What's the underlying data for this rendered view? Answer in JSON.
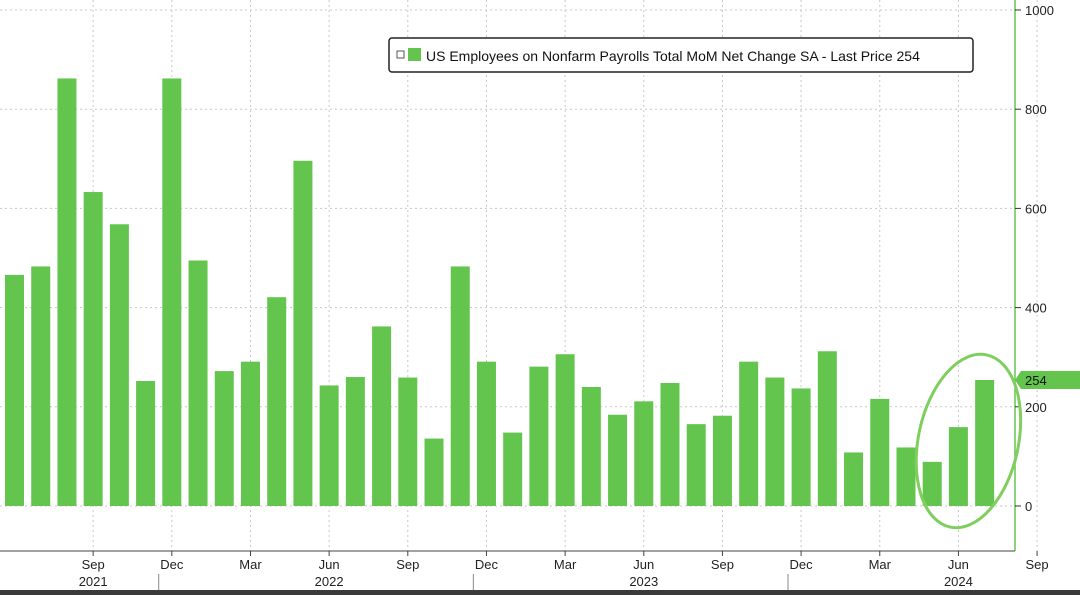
{
  "chart_data": {
    "type": "bar",
    "title": "",
    "xlabel": "",
    "ylabel": "",
    "legend": {
      "label": "US Employees on Nonfarm Payrolls Total MoM Net Change SA - Last Price 254",
      "placement": "top-right"
    },
    "series": [
      {
        "name": "US Employees on Nonfarm Payrolls Total MoM Net Change SA",
        "color": "#63c54d",
        "values": [
          466,
          483,
          862,
          633,
          568,
          252,
          862,
          495,
          272,
          291,
          421,
          696,
          243,
          260,
          362,
          259,
          136,
          483,
          291,
          148,
          281,
          306,
          240,
          184,
          211,
          248,
          165,
          182,
          291,
          259,
          237,
          312,
          108,
          216,
          118,
          89,
          159,
          254
        ]
      }
    ],
    "categories": [
      "2021-06",
      "2021-07",
      "2021-08",
      "2021-09",
      "2021-10",
      "2021-11",
      "2021-12",
      "2022-01",
      "2022-02",
      "2022-03",
      "2022-04",
      "2022-05",
      "2022-06",
      "2022-07",
      "2022-08",
      "2022-09",
      "2022-10",
      "2022-11",
      "2022-12",
      "2023-01",
      "2023-02",
      "2023-03",
      "2023-04",
      "2023-05",
      "2023-06",
      "2023-07",
      "2023-08",
      "2023-09",
      "2023-10",
      "2023-11",
      "2023-12",
      "2024-01",
      "2024-02",
      "2024-03",
      "2024-04",
      "2024-05",
      "2024-06",
      "2024-07"
    ],
    "ylim": [
      -90,
      1000
    ],
    "y_ticks": [
      "1000",
      "800",
      "600",
      "400",
      "200",
      "0"
    ],
    "x_month_ticks": [
      {
        "label": "Sep",
        "date": "2021-09"
      },
      {
        "label": "Dec",
        "date": "2021-12"
      },
      {
        "label": "Mar",
        "date": "2022-03"
      },
      {
        "label": "Jun",
        "date": "2022-06"
      },
      {
        "label": "Sep",
        "date": "2022-09"
      },
      {
        "label": "Dec",
        "date": "2022-12"
      },
      {
        "label": "Mar",
        "date": "2023-03"
      },
      {
        "label": "Jun",
        "date": "2023-06"
      },
      {
        "label": "Sep",
        "date": "2023-09"
      },
      {
        "label": "Dec",
        "date": "2023-12"
      },
      {
        "label": "Mar",
        "date": "2024-03"
      },
      {
        "label": "Jun",
        "date": "2024-06"
      },
      {
        "label": "Sep",
        "date": "2024-09"
      }
    ],
    "x_year_ticks": [
      {
        "label": "2021",
        "date": "2021-09"
      },
      {
        "label": "2022",
        "date": "2022-06"
      },
      {
        "label": "2023",
        "date": "2023-06"
      },
      {
        "label": "2024",
        "date": "2024-06"
      }
    ],
    "last_value": {
      "label": "254",
      "value": 254
    },
    "grid": true,
    "highlight_circle_dates": [
      "2024-05",
      "2024-07"
    ],
    "colors": {
      "bar": "#63c54d",
      "axis": "#63c54d",
      "grid": "#c8c8c8",
      "highlight": "#7fcf5f"
    }
  }
}
